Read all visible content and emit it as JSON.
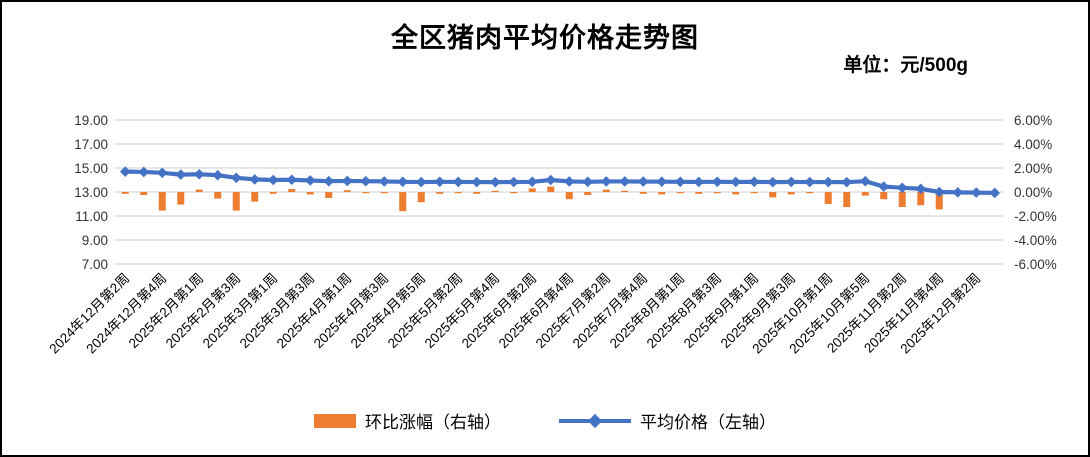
{
  "title": "全区猪肉平均价格走势图",
  "unit_label": "单位：元/500g",
  "legend": [
    {
      "label": "环比涨幅（右轴）",
      "color": "#ED7D31",
      "type": "bar"
    },
    {
      "label": "平均价格（左轴）",
      "color": "#4472C4",
      "type": "line"
    }
  ],
  "left_axis": {
    "ticks": [
      "19.00",
      "17.00",
      "15.00",
      "13.00",
      "11.00",
      "9.00",
      "7.00"
    ],
    "range": [
      7,
      19
    ]
  },
  "right_axis": {
    "ticks": [
      "6.00%",
      "4.00%",
      "2.00%",
      "0.00%",
      "-2.00%",
      "-4.00%",
      "-6.00%"
    ],
    "range": [
      -6,
      6
    ]
  },
  "colors": {
    "bar": "#ED7D31",
    "line": "#4472C4",
    "gridline": "#D9D9D9",
    "axis_text": "#333333",
    "x_label_text": "#000000"
  },
  "chart_data": {
    "type": "bar",
    "subtype": "combo-line-bar",
    "title": "全区猪肉平均价格走势图",
    "unit": "元/500g",
    "grid": true,
    "legend_position": "bottom",
    "x_label_interval": 2,
    "x_labels_visible": [
      "2024年12月第2周",
      "2024年12月第4周",
      "2025年2月第1周",
      "2025年2月第3周",
      "2025年3月第1周",
      "2025年3月第3周",
      "2025年4月第1周",
      "2025年4月第3周",
      "2025年4月第5周",
      "2025年5月第2周",
      "2025年5月第4周",
      "2025年6月第2周",
      "2025年6月第4周",
      "2025年7月第2周",
      "2025年7月第4周",
      "2025年8月第1周",
      "2025年8月第3周",
      "2025年9月第1周",
      "2025年9月第3周",
      "2025年10月第1周",
      "2025年10月第5周",
      "2025年11月第2周",
      "2025年11月第4周",
      "2025年12月第2周"
    ],
    "left_axis_range": [
      7,
      19
    ],
    "right_axis_range": [
      -6,
      6
    ],
    "series": [
      {
        "name": "平均价格（左轴）",
        "type": "line",
        "axis": "left",
        "color": "#4472C4",
        "values": [
          14.7,
          14.67,
          14.6,
          14.45,
          14.48,
          14.4,
          14.18,
          14.05,
          14.0,
          14.02,
          13.96,
          13.9,
          13.92,
          13.9,
          13.88,
          13.85,
          13.83,
          13.85,
          13.84,
          13.83,
          13.82,
          13.83,
          13.85,
          14.0,
          13.88,
          13.85,
          13.88,
          13.88,
          13.87,
          13.86,
          13.85,
          13.84,
          13.85,
          13.84,
          13.85,
          13.82,
          13.84,
          13.83,
          13.83,
          13.82,
          13.9,
          13.45,
          13.35,
          13.27,
          13.0,
          12.97,
          12.95,
          12.92
        ]
      },
      {
        "name": "环比涨幅（右轴）",
        "type": "bar",
        "axis": "right",
        "color": "#ED7D31",
        "values": [
          -0.15,
          -0.25,
          -1.55,
          -1.05,
          0.2,
          -0.55,
          -1.55,
          -0.8,
          -0.15,
          0.25,
          -0.2,
          -0.5,
          0.15,
          -0.1,
          -0.1,
          -1.6,
          -0.85,
          -0.15,
          -0.1,
          -0.15,
          0.1,
          -0.1,
          0.3,
          0.45,
          -0.6,
          -0.25,
          0.2,
          0.1,
          -0.15,
          -0.2,
          -0.1,
          -0.15,
          -0.1,
          -0.2,
          -0.1,
          -0.45,
          -0.2,
          -0.1,
          -1.0,
          -1.25,
          -0.3,
          -0.6,
          -1.25,
          -1.1,
          -1.45,
          -0.15,
          -0.1,
          -0.15
        ]
      }
    ]
  }
}
